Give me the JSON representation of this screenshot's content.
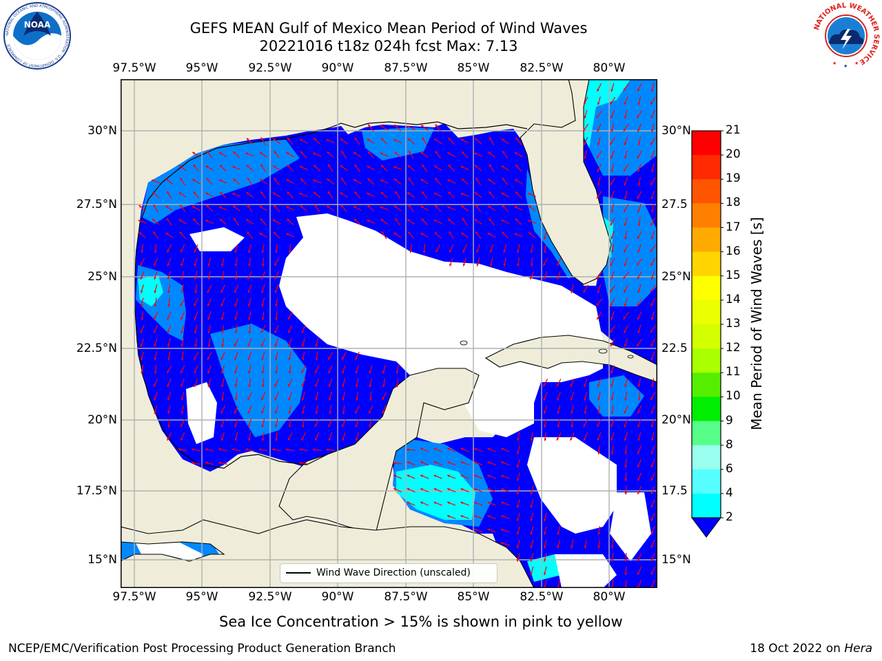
{
  "title": {
    "line1": "GEFS MEAN Gulf of Mexico Mean Period of Wind Waves",
    "line2": "20221016 t18z 024h fcst   Max: 7.13"
  },
  "map": {
    "lon_ticks": [
      "97.5°W",
      "95°W",
      "92.5°W",
      "90°W",
      "87.5°W",
      "85°W",
      "82.5°W",
      "80°W"
    ],
    "lat_ticks_left": [
      "30°N",
      "27.5°N",
      "25°N",
      "22.5°N",
      "20°N",
      "17.5°N",
      "15°N"
    ],
    "lat_ticks_right": [
      "30°N",
      "27.5",
      "25°N",
      "22.5",
      "20°N",
      "17.5",
      "15°N"
    ],
    "land_color": "#efedda",
    "grid_color": "#b0b0b0"
  },
  "legend": {
    "label": "Wind Wave Direction (unscaled)",
    "arrow_color": "#ff0000"
  },
  "colorbar": {
    "label": "Mean Period of Wind Waves [s]",
    "ticks": [
      "21",
      "20",
      "19",
      "18",
      "17",
      "16",
      "15",
      "14",
      "13",
      "12",
      "11",
      "10",
      "9",
      "8",
      "6",
      "4",
      "2"
    ],
    "colors": [
      "#ff0000",
      "#ff2a00",
      "#ff5500",
      "#ff8000",
      "#ffaa00",
      "#ffd400",
      "#ffff00",
      "#eaff00",
      "#d4ff00",
      "#aaff00",
      "#55ee00",
      "#00ee00",
      "#55ff88",
      "#99ffee",
      "#55ffff",
      "#00ffff",
      "#0088ff"
    ],
    "under_color": "#0000ff"
  },
  "logos": {
    "noaa": {
      "name": "NOAA",
      "ring": "NATIONAL OCEANIC AND ATMOSPHERIC ADMINISTRATION · U.S. DEPARTMENT OF COMMERCE"
    },
    "nws": {
      "ring": "NATIONAL WEATHER SERVICE"
    }
  },
  "note": "Sea Ice Concentration > 15% is shown in pink to yellow",
  "footer": {
    "left": "NCEP/EMC/Verification Post Processing Product Generation Branch",
    "right_prefix": "18 Oct 2022 on ",
    "right_host": "Hera"
  }
}
